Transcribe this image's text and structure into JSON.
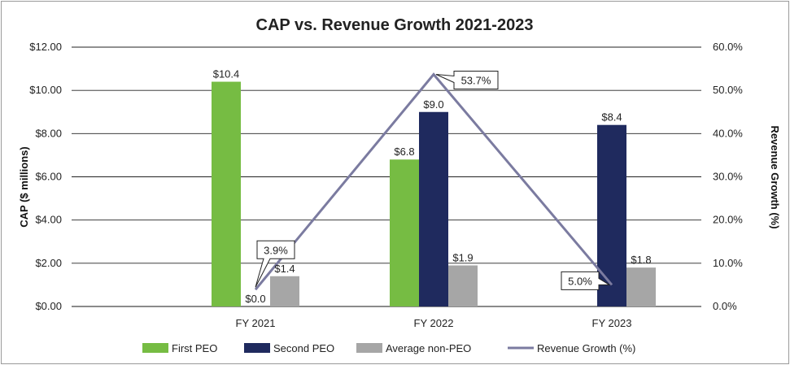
{
  "chart_data": {
    "type": "bar",
    "title": "CAP vs. Revenue Growth 2021-2023",
    "categories": [
      "FY 2021",
      "FY 2022",
      "FY 2023"
    ],
    "ylabel": "CAP ($ millions)",
    "y2label": "Revenue Growth (%)",
    "ylim": [
      0,
      12
    ],
    "y2lim": [
      0,
      60
    ],
    "yticks": [
      "$0.00",
      "$2.00",
      "$4.00",
      "$6.00",
      "$8.00",
      "$10.00",
      "$12.00"
    ],
    "y2ticks": [
      "0.0%",
      "10.0%",
      "20.0%",
      "30.0%",
      "40.0%",
      "50.0%",
      "60.0%"
    ],
    "grid": true,
    "legend_position": "bottom",
    "series": [
      {
        "name": "First PEO",
        "kind": "bar",
        "color": "#76bc43",
        "values": [
          10.4,
          6.8,
          null
        ],
        "labels": [
          "$10.4",
          "$6.8",
          ""
        ]
      },
      {
        "name": "Second PEO",
        "kind": "bar",
        "color": "#1f2a5e",
        "values": [
          0.0,
          9.0,
          8.4
        ],
        "labels": [
          "$0.0",
          "$9.0",
          "$8.4"
        ]
      },
      {
        "name": "Average non-PEO",
        "kind": "bar",
        "color": "#a6a6a6",
        "values": [
          1.4,
          1.9,
          1.8
        ],
        "labels": [
          "$1.4",
          "$1.9",
          "$1.8"
        ]
      },
      {
        "name": "Revenue Growth (%)",
        "kind": "line",
        "axis": "right",
        "color": "#7b7ba0",
        "values": [
          3.9,
          53.7,
          5.0
        ],
        "labels": [
          "3.9%",
          "53.7%",
          "5.0%"
        ]
      }
    ]
  }
}
